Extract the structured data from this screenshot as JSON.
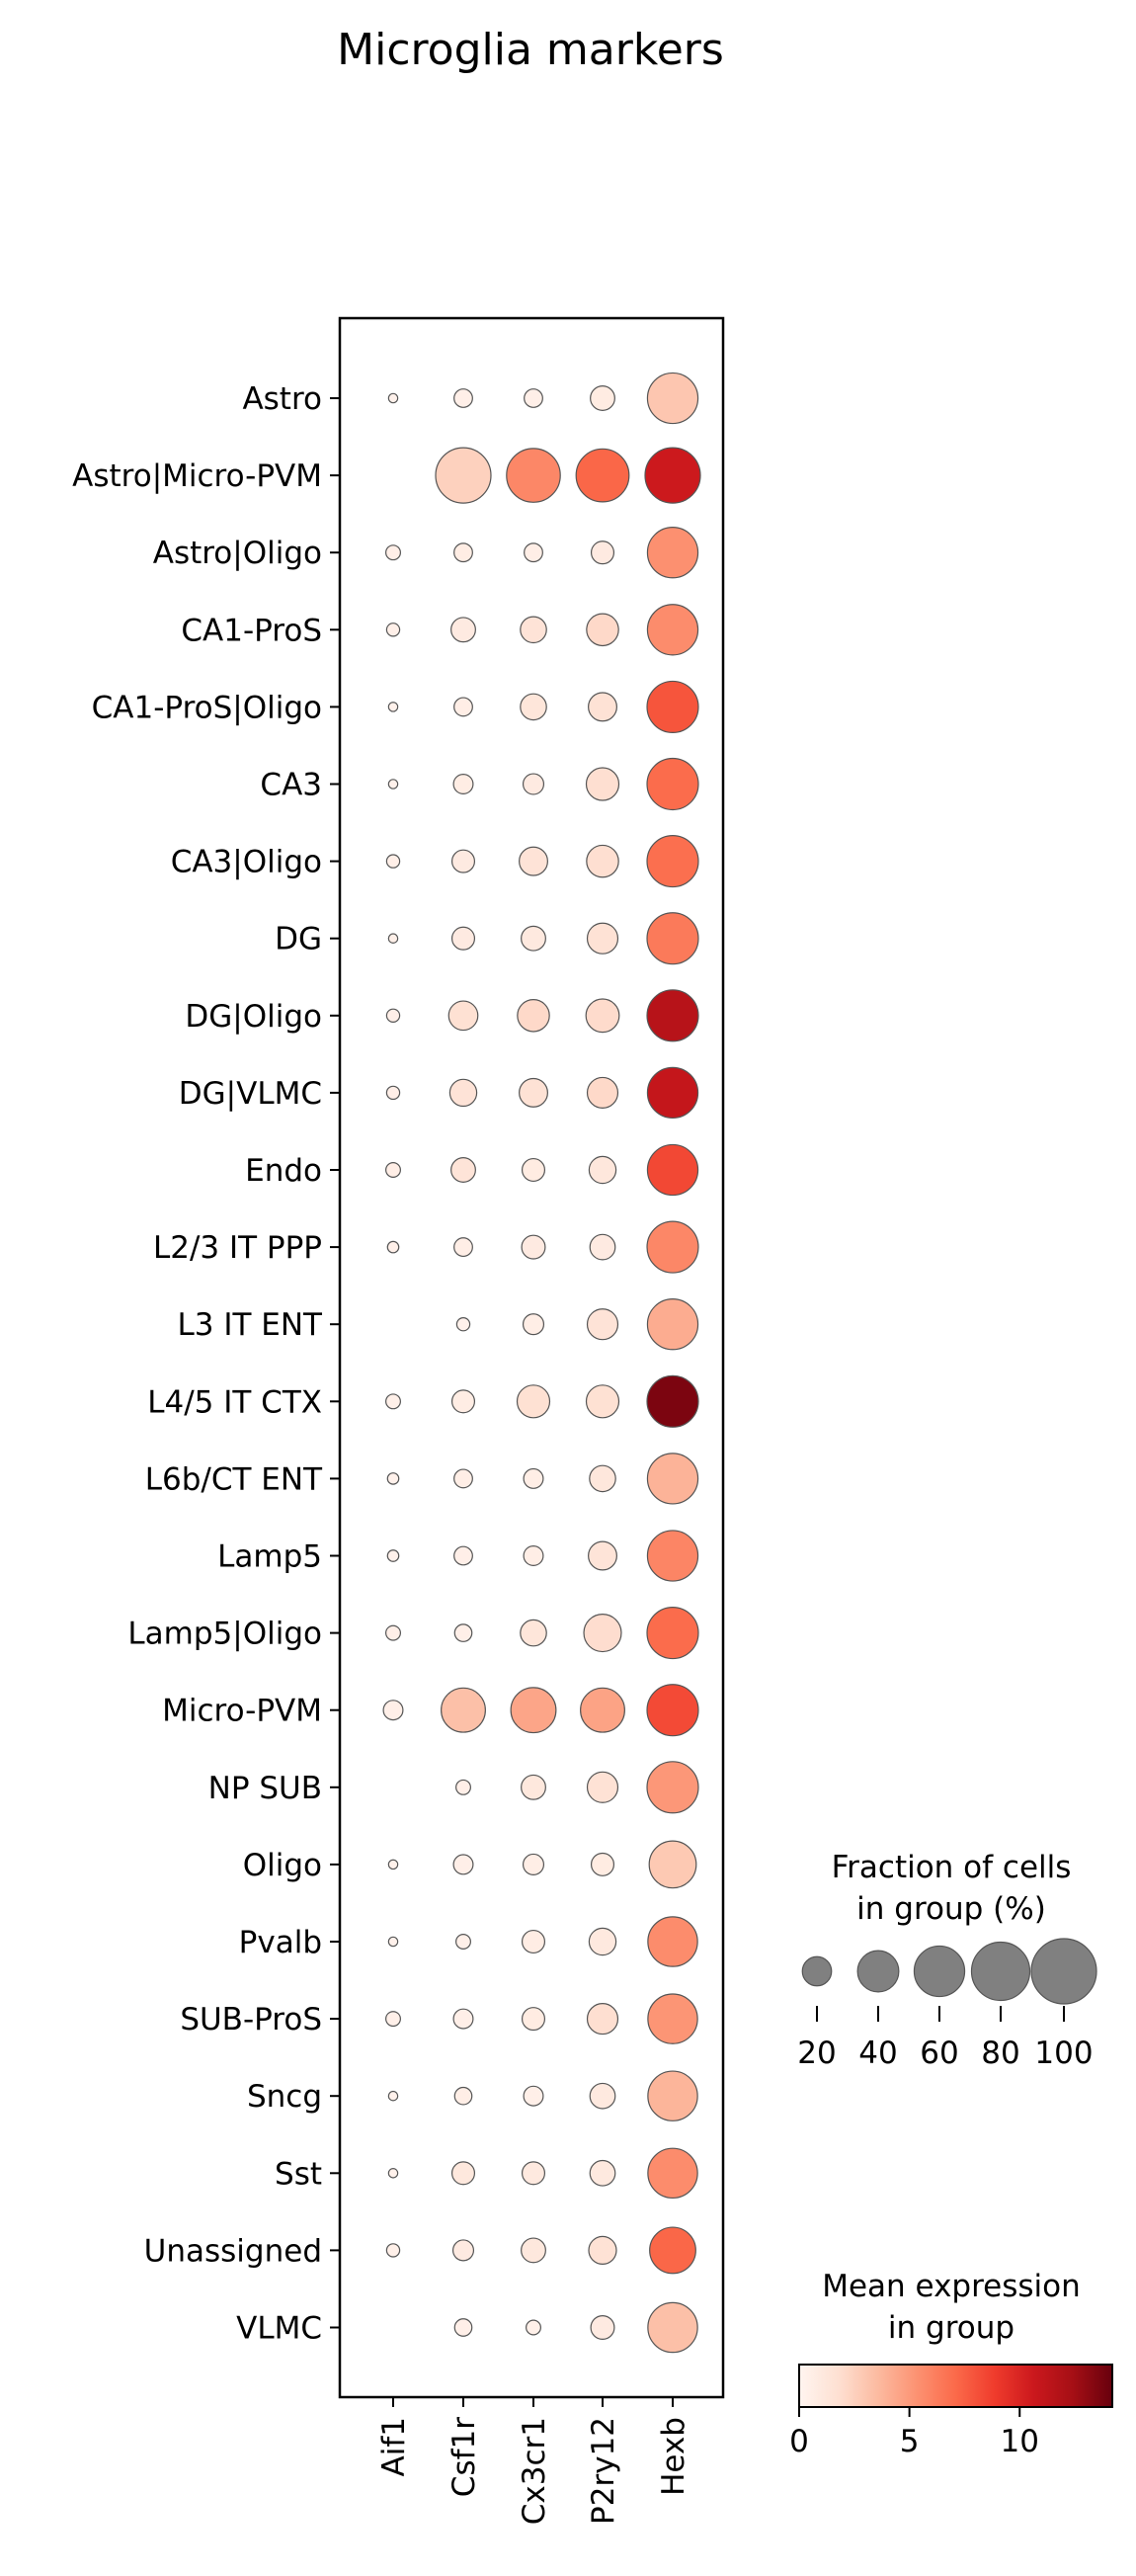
{
  "chart_data": {
    "type": "dotplot",
    "title": "Microglia markers",
    "genes": [
      "Aif1",
      "Csf1r",
      "Cx3cr1",
      "P2ry12",
      "Hexb"
    ],
    "groups": [
      "Astro",
      "Astro|Micro-PVM",
      "Astro|Oligo",
      "CA1-ProS",
      "CA1-ProS|Oligo",
      "CA3",
      "CA3|Oligo",
      "DG",
      "DG|Oligo",
      "DG|VLMC",
      "Endo",
      "L2/3 IT PPP",
      "L3 IT ENT",
      "L4/5 IT CTX",
      "L6b/CT ENT",
      "Lamp5",
      "Lamp5|Oligo",
      "Micro-PVM",
      "NP SUB",
      "Oligo",
      "Pvalb",
      "SUB-ProS",
      "Sncg",
      "Sst",
      "Unassigned",
      "VLMC"
    ],
    "fraction_pct": [
      [
        2,
        8,
        8,
        14,
        60
      ],
      [
        0,
        72,
        68,
        66,
        72
      ],
      [
        5,
        8,
        8,
        12,
        60
      ],
      [
        4,
        14,
        16,
        24,
        60
      ],
      [
        2,
        8,
        16,
        19,
        62
      ],
      [
        2,
        9,
        10,
        25,
        62
      ],
      [
        4,
        12,
        19,
        24,
        62
      ],
      [
        2,
        12,
        14,
        22,
        62
      ],
      [
        4,
        20,
        24,
        26,
        62
      ],
      [
        4,
        17,
        19,
        22,
        60
      ],
      [
        5,
        14,
        12,
        17,
        60
      ],
      [
        3,
        8,
        13,
        15,
        62
      ],
      [
        0,
        4,
        10,
        22,
        60
      ],
      [
        5,
        12,
        25,
        25,
        62
      ],
      [
        3,
        8,
        9,
        16,
        60
      ],
      [
        3,
        8,
        9,
        19,
        60
      ],
      [
        5,
        7,
        16,
        33,
        62
      ],
      [
        9,
        46,
        48,
        46,
        62
      ],
      [
        0,
        5,
        14,
        22,
        62
      ],
      [
        2,
        9,
        10,
        12,
        52
      ],
      [
        2,
        5,
        12,
        17,
        58
      ],
      [
        5,
        9,
        12,
        22,
        58
      ],
      [
        2,
        7,
        9,
        15,
        58
      ],
      [
        2,
        12,
        12,
        15,
        58
      ],
      [
        4,
        10,
        14,
        18,
        50
      ],
      [
        0,
        7,
        5,
        13,
        58
      ]
    ],
    "mean_expression": [
      [
        0.3,
        0.5,
        0.5,
        0.8,
        3.0
      ],
      [
        0,
        2.5,
        5.8,
        7.2,
        10.6
      ],
      [
        0.5,
        0.7,
        0.6,
        0.9,
        5.4
      ],
      [
        0.4,
        0.9,
        1.5,
        2.1,
        5.6
      ],
      [
        0.3,
        0.6,
        1.3,
        1.6,
        7.9
      ],
      [
        0.3,
        0.7,
        0.9,
        1.8,
        7.0
      ],
      [
        0.5,
        0.9,
        1.5,
        1.8,
        6.9
      ],
      [
        0.4,
        0.9,
        1.0,
        1.6,
        6.4
      ],
      [
        0.5,
        1.7,
        2.1,
        2.0,
        11.6
      ],
      [
        0.5,
        1.5,
        1.6,
        2.1,
        11.0
      ],
      [
        0.6,
        1.4,
        0.8,
        1.2,
        8.4
      ],
      [
        0.4,
        0.6,
        0.9,
        0.9,
        5.8
      ],
      [
        0,
        0.3,
        0.6,
        1.5,
        4.2
      ],
      [
        0.4,
        0.7,
        1.7,
        1.7,
        13.6
      ],
      [
        0.3,
        0.6,
        0.6,
        1.2,
        3.9
      ],
      [
        0.3,
        0.5,
        0.6,
        1.4,
        5.9
      ],
      [
        0.5,
        0.5,
        1.3,
        1.9,
        7.0
      ],
      [
        0.5,
        3.3,
        4.5,
        4.6,
        8.3
      ],
      [
        0,
        0.5,
        1.1,
        1.6,
        5.1
      ],
      [
        0.3,
        0.5,
        0.6,
        0.8,
        2.9
      ],
      [
        0.3,
        0.4,
        0.7,
        1.0,
        5.6
      ],
      [
        0.4,
        0.5,
        0.8,
        1.8,
        5.2
      ],
      [
        0.3,
        0.6,
        0.5,
        1.0,
        3.8
      ],
      [
        0.3,
        1.1,
        1.0,
        1.0,
        5.6
      ],
      [
        0.4,
        0.9,
        1.1,
        1.6,
        7.2
      ],
      [
        0,
        0.5,
        0.4,
        0.9,
        3.3
      ]
    ],
    "size_legend": {
      "title_line1": "Fraction of cells",
      "title_line2": "in group (%)",
      "values": [
        20,
        40,
        60,
        80,
        100
      ]
    },
    "color_legend": {
      "title_line1": "Mean expression",
      "title_line2": "in group",
      "min": 0,
      "max": 14.2,
      "ticks": [
        0,
        5,
        10
      ]
    },
    "colormap": "Reds",
    "dot_edge_color": "#555555"
  }
}
